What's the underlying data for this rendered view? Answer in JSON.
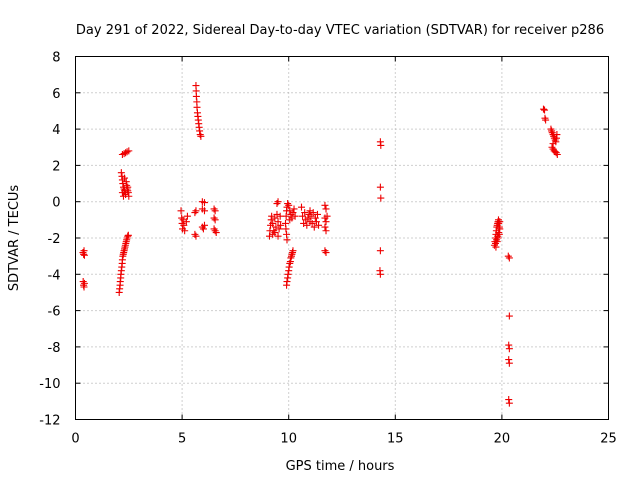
{
  "chart_data": {
    "type": "scatter",
    "title": "Day 291 of 2022, Sidereal Day-to-day VTEC variation (SDTVAR) for receiver p286",
    "xlabel": "GPS time / hours",
    "ylabel": "SDTVAR / TECUs",
    "xlim": [
      0,
      25
    ],
    "ylim": [
      -12,
      8
    ],
    "xticks": [
      0,
      5,
      10,
      15,
      20,
      25
    ],
    "yticks": [
      -12,
      -10,
      -8,
      -6,
      -4,
      -2,
      0,
      2,
      4,
      6,
      8
    ],
    "grid": true,
    "marker": "+",
    "color": "#ee0000",
    "series": [
      {
        "name": "SDTVAR",
        "points": [
          [
            0.35,
            -2.8
          ],
          [
            0.38,
            -2.9
          ],
          [
            0.4,
            -2.7
          ],
          [
            0.42,
            -2.95
          ],
          [
            0.36,
            -4.4
          ],
          [
            0.38,
            -4.6
          ],
          [
            0.4,
            -4.7
          ],
          [
            0.42,
            -4.5
          ],
          [
            2.05,
            -5.0
          ],
          [
            2.07,
            -4.8
          ],
          [
            2.09,
            -4.6
          ],
          [
            2.1,
            -4.4
          ],
          [
            2.12,
            -4.2
          ],
          [
            2.13,
            -4.0
          ],
          [
            2.15,
            -3.8
          ],
          [
            2.17,
            -3.6
          ],
          [
            2.19,
            -3.4
          ],
          [
            2.2,
            -3.2
          ],
          [
            2.22,
            -3.0
          ],
          [
            2.24,
            -2.9
          ],
          [
            2.26,
            -2.8
          ],
          [
            2.28,
            -2.7
          ],
          [
            2.3,
            -2.6
          ],
          [
            2.32,
            -2.5
          ],
          [
            2.34,
            -2.4
          ],
          [
            2.36,
            -2.3
          ],
          [
            2.38,
            -2.2
          ],
          [
            2.4,
            -2.1
          ],
          [
            2.42,
            -2.0
          ],
          [
            2.45,
            -1.9
          ],
          [
            2.48,
            -1.85
          ],
          [
            2.15,
            1.6
          ],
          [
            2.18,
            1.4
          ],
          [
            2.2,
            1.2
          ],
          [
            2.22,
            1.0
          ],
          [
            2.25,
            0.8
          ],
          [
            2.28,
            0.7
          ],
          [
            2.3,
            0.6
          ],
          [
            2.33,
            0.5
          ],
          [
            2.35,
            0.4
          ],
          [
            2.2,
            0.5
          ],
          [
            2.25,
            0.3
          ],
          [
            2.4,
            0.9
          ],
          [
            2.42,
            0.7
          ],
          [
            2.45,
            0.6
          ],
          [
            2.48,
            0.5
          ],
          [
            2.5,
            0.3
          ],
          [
            2.38,
            1.1
          ],
          [
            2.3,
            1.3
          ],
          [
            2.45,
            0.8
          ],
          [
            2.2,
            2.6
          ],
          [
            2.28,
            2.65
          ],
          [
            2.35,
            2.7
          ],
          [
            2.42,
            2.75
          ],
          [
            2.5,
            2.8
          ],
          [
            4.95,
            -0.5
          ],
          [
            4.98,
            -0.9
          ],
          [
            5.0,
            -1.2
          ],
          [
            5.02,
            -1.5
          ],
          [
            5.05,
            -1.0
          ],
          [
            5.08,
            -1.3
          ],
          [
            5.12,
            -1.6
          ],
          [
            5.2,
            -1.1
          ],
          [
            5.25,
            -0.8
          ],
          [
            5.6,
            -0.6
          ],
          [
            5.65,
            -0.5
          ],
          [
            5.6,
            -1.8
          ],
          [
            5.65,
            -1.9
          ],
          [
            5.95,
            -1.4
          ],
          [
            6.0,
            -1.5
          ],
          [
            6.05,
            -1.3
          ],
          [
            5.95,
            -0.4
          ],
          [
            6.05,
            -0.5
          ],
          [
            5.95,
            0.0
          ],
          [
            6.05,
            -0.05
          ],
          [
            6.5,
            -0.4
          ],
          [
            6.55,
            -0.5
          ],
          [
            6.5,
            -0.9
          ],
          [
            6.55,
            -1.0
          ],
          [
            6.5,
            -1.5
          ],
          [
            6.55,
            -1.6
          ],
          [
            6.6,
            -1.7
          ],
          [
            5.65,
            6.4
          ],
          [
            5.66,
            6.1
          ],
          [
            5.67,
            5.8
          ],
          [
            5.69,
            5.5
          ],
          [
            5.7,
            5.2
          ],
          [
            5.72,
            4.9
          ],
          [
            5.74,
            4.7
          ],
          [
            5.76,
            4.5
          ],
          [
            5.78,
            4.3
          ],
          [
            5.8,
            4.1
          ],
          [
            5.82,
            3.9
          ],
          [
            5.85,
            3.7
          ],
          [
            5.88,
            3.6
          ],
          [
            9.1,
            -1.9
          ],
          [
            9.12,
            -1.6
          ],
          [
            9.15,
            -1.3
          ],
          [
            9.18,
            -1.0
          ],
          [
            9.2,
            -0.8
          ],
          [
            9.25,
            -1.2
          ],
          [
            9.3,
            -1.6
          ],
          [
            9.35,
            -0.9
          ],
          [
            9.4,
            -1.4
          ],
          [
            9.45,
            -0.7
          ],
          [
            9.5,
            -1.1
          ],
          [
            9.55,
            -1.5
          ],
          [
            9.6,
            -0.8
          ],
          [
            9.62,
            -1.3
          ],
          [
            9.25,
            -1.8
          ],
          [
            9.35,
            -1.7
          ],
          [
            9.5,
            -1.9
          ],
          [
            9.5,
            0.0
          ],
          [
            9.45,
            -0.1
          ],
          [
            9.85,
            -1.2
          ],
          [
            9.87,
            -1.5
          ],
          [
            9.9,
            -1.8
          ],
          [
            9.92,
            -2.1
          ],
          [
            9.88,
            -0.8
          ],
          [
            9.9,
            -0.5
          ],
          [
            9.92,
            -0.3
          ],
          [
            9.95,
            -0.1
          ],
          [
            10.0,
            -0.2
          ],
          [
            10.05,
            -0.5
          ],
          [
            10.1,
            -0.7
          ],
          [
            10.15,
            -0.9
          ],
          [
            10.2,
            -0.6
          ],
          [
            10.25,
            -0.4
          ],
          [
            10.3,
            -0.8
          ],
          [
            10.05,
            -1.0
          ],
          [
            9.9,
            -4.6
          ],
          [
            9.92,
            -4.4
          ],
          [
            9.95,
            -4.2
          ],
          [
            9.97,
            -4.0
          ],
          [
            10.0,
            -3.8
          ],
          [
            10.02,
            -3.6
          ],
          [
            10.05,
            -3.4
          ],
          [
            10.08,
            -3.3
          ],
          [
            10.1,
            -3.1
          ],
          [
            10.13,
            -3.0
          ],
          [
            10.15,
            -2.9
          ],
          [
            10.18,
            -2.8
          ],
          [
            10.2,
            -2.7
          ],
          [
            10.6,
            -0.3
          ],
          [
            10.65,
            -0.8
          ],
          [
            10.7,
            -1.2
          ],
          [
            10.75,
            -0.6
          ],
          [
            10.8,
            -1.0
          ],
          [
            10.85,
            -1.3
          ],
          [
            10.9,
            -0.9
          ],
          [
            10.95,
            -0.7
          ],
          [
            11.0,
            -1.1
          ],
          [
            11.05,
            -0.8
          ],
          [
            11.1,
            -1.2
          ],
          [
            11.15,
            -0.6
          ],
          [
            11.2,
            -1.4
          ],
          [
            11.25,
            -0.9
          ],
          [
            11.3,
            -1.1
          ],
          [
            11.35,
            -0.7
          ],
          [
            11.4,
            -1.3
          ],
          [
            11.0,
            -0.5
          ],
          [
            11.7,
            -0.2
          ],
          [
            11.75,
            -0.4
          ],
          [
            11.7,
            -0.9
          ],
          [
            11.75,
            -1.1
          ],
          [
            11.8,
            -0.8
          ],
          [
            11.7,
            -1.4
          ],
          [
            11.75,
            -1.6
          ],
          [
            11.7,
            -2.7
          ],
          [
            11.75,
            -2.8
          ],
          [
            14.3,
            3.3
          ],
          [
            14.32,
            3.1
          ],
          [
            14.3,
            0.8
          ],
          [
            14.32,
            0.2
          ],
          [
            14.3,
            -2.7
          ],
          [
            14.28,
            -3.8
          ],
          [
            14.3,
            -4.0
          ],
          [
            19.65,
            -2.4
          ],
          [
            19.67,
            -2.2
          ],
          [
            19.7,
            -2.0
          ],
          [
            19.72,
            -1.8
          ],
          [
            19.74,
            -1.6
          ],
          [
            19.76,
            -1.4
          ],
          [
            19.78,
            -1.3
          ],
          [
            19.8,
            -1.2
          ],
          [
            19.82,
            -1.1
          ],
          [
            19.84,
            -1.0
          ],
          [
            19.85,
            -1.2
          ],
          [
            19.86,
            -1.5
          ],
          [
            19.88,
            -1.8
          ],
          [
            19.7,
            -2.3
          ],
          [
            19.75,
            -2.1
          ],
          [
            19.8,
            -1.9
          ],
          [
            19.85,
            -1.7
          ],
          [
            19.9,
            -1.5
          ],
          [
            19.72,
            -2.5
          ],
          [
            19.78,
            -2.2
          ],
          [
            19.82,
            -2.0
          ],
          [
            19.88,
            -1.4
          ],
          [
            19.9,
            -1.1
          ],
          [
            20.3,
            -3.0
          ],
          [
            20.35,
            -3.1
          ],
          [
            20.35,
            -6.3
          ],
          [
            20.32,
            -7.9
          ],
          [
            20.35,
            -8.1
          ],
          [
            20.32,
            -8.7
          ],
          [
            20.35,
            -8.9
          ],
          [
            20.32,
            -10.9
          ],
          [
            20.35,
            -11.1
          ],
          [
            21.95,
            5.1
          ],
          [
            22.0,
            5.05
          ],
          [
            22.02,
            4.6
          ],
          [
            22.05,
            4.5
          ],
          [
            22.3,
            4.0
          ],
          [
            22.33,
            3.9
          ],
          [
            22.36,
            3.8
          ],
          [
            22.4,
            3.7
          ],
          [
            22.43,
            3.6
          ],
          [
            22.46,
            3.5
          ],
          [
            22.5,
            3.4
          ],
          [
            22.53,
            3.3
          ],
          [
            22.56,
            3.5
          ],
          [
            22.58,
            3.7
          ],
          [
            22.4,
            3.2
          ],
          [
            22.35,
            3.0
          ],
          [
            22.4,
            2.9
          ],
          [
            22.45,
            2.8
          ],
          [
            22.5,
            2.75
          ],
          [
            22.55,
            2.7
          ],
          [
            22.6,
            2.6
          ]
        ]
      }
    ]
  }
}
